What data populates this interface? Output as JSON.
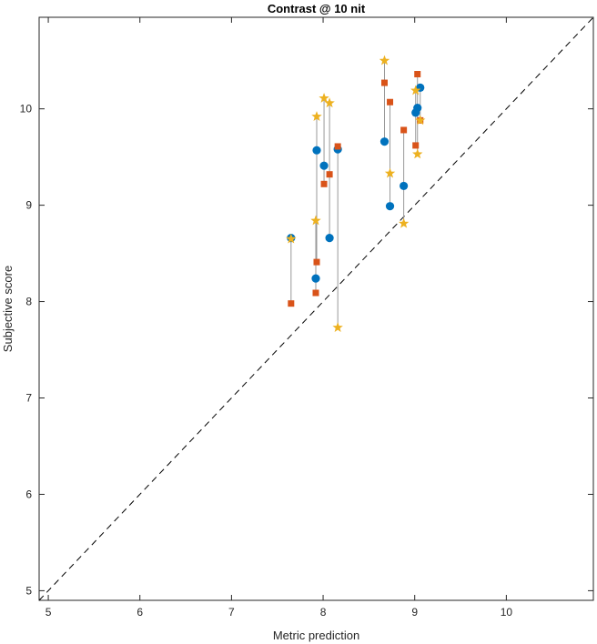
{
  "chart_data": {
    "type": "scatter",
    "title": "Contrast @ 10 nit",
    "xlabel": "Metric prediction",
    "ylabel": "Subjective score",
    "xlim": [
      4.9,
      10.95
    ],
    "ylim": [
      4.9,
      10.95
    ],
    "xticks": [
      5,
      6,
      7,
      8,
      9,
      10
    ],
    "yticks": [
      5,
      6,
      7,
      8,
      9,
      10
    ],
    "grid": false,
    "reference_line": "dashed identity line y = x",
    "colors": {
      "circle": "#0072BD",
      "square": "#D95319",
      "star": "#EDB120",
      "connector": "#999999",
      "reference": "#000000"
    },
    "series": [
      {
        "marker": "circle",
        "color": "#0072BD",
        "points": [
          [
            7.65,
            8.66
          ],
          [
            7.92,
            8.24
          ],
          [
            7.93,
            9.57
          ],
          [
            8.01,
            9.41
          ],
          [
            8.07,
            8.66
          ],
          [
            8.16,
            9.58
          ],
          [
            8.67,
            9.66
          ],
          [
            8.73,
            8.99
          ],
          [
            8.88,
            9.2
          ],
          [
            9.01,
            9.96
          ],
          [
            9.03,
            10.01
          ],
          [
            9.06,
            10.22
          ]
        ]
      },
      {
        "marker": "square",
        "color": "#D95319",
        "points": [
          [
            7.65,
            7.98
          ],
          [
            7.92,
            8.09
          ],
          [
            7.93,
            8.41
          ],
          [
            8.01,
            9.22
          ],
          [
            8.07,
            9.32
          ],
          [
            8.16,
            9.61
          ],
          [
            8.67,
            10.27
          ],
          [
            8.73,
            10.07
          ],
          [
            8.88,
            9.78
          ],
          [
            9.01,
            9.62
          ],
          [
            9.03,
            10.36
          ],
          [
            9.06,
            9.88
          ]
        ]
      },
      {
        "marker": "star",
        "color": "#EDB120",
        "points": [
          [
            7.65,
            8.65
          ],
          [
            7.92,
            8.84
          ],
          [
            7.93,
            9.92
          ],
          [
            8.01,
            10.11
          ],
          [
            8.07,
            10.06
          ],
          [
            8.16,
            7.73
          ],
          [
            8.67,
            10.5
          ],
          [
            8.73,
            9.33
          ],
          [
            8.88,
            8.81
          ],
          [
            9.01,
            10.19
          ],
          [
            9.03,
            9.53
          ],
          [
            9.06,
            9.88
          ]
        ]
      }
    ]
  }
}
